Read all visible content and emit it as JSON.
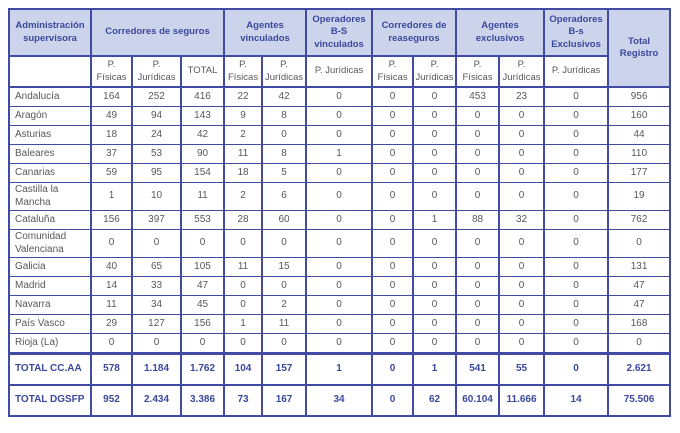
{
  "table": {
    "header": {
      "admin": "Administración supervisora",
      "groups": [
        "Corredores de seguros",
        "Agentes vinculados",
        "Operadores B-S vinculados",
        "Corredores de reaseguros",
        "Agentes exclusivos",
        "Operadores B-s Exclusivos"
      ],
      "total": "Total Registro"
    },
    "subheaders": [
      "P. Físicas",
      "P. Jurídicas",
      "TOTAL",
      "P. Físicas",
      "P. Jurídicas",
      "P. Jurídicas",
      "P. Físicas",
      "P. Jurídicas",
      "P. Físicas",
      "P. Jurídicas",
      "P. Jurídicas"
    ],
    "rows": [
      {
        "name": "Andalucía",
        "values": [
          "164",
          "252",
          "416",
          "22",
          "42",
          "0",
          "0",
          "0",
          "453",
          "23",
          "0",
          "956"
        ]
      },
      {
        "name": "Aragón",
        "values": [
          "49",
          "94",
          "143",
          "9",
          "8",
          "0",
          "0",
          "0",
          "0",
          "0",
          "0",
          "160"
        ]
      },
      {
        "name": "Asturias",
        "values": [
          "18",
          "24",
          "42",
          "2",
          "0",
          "0",
          "0",
          "0",
          "0",
          "0",
          "0",
          "44"
        ]
      },
      {
        "name": "Baleares",
        "values": [
          "37",
          "53",
          "90",
          "11",
          "8",
          "1",
          "0",
          "0",
          "0",
          "0",
          "0",
          "110"
        ]
      },
      {
        "name": "Canarias",
        "values": [
          "59",
          "95",
          "154",
          "18",
          "5",
          "0",
          "0",
          "0",
          "0",
          "0",
          "0",
          "177"
        ]
      },
      {
        "name": "Castilla la Mancha",
        "values": [
          "1",
          "10",
          "11",
          "2",
          "6",
          "0",
          "0",
          "0",
          "0",
          "0",
          "0",
          "19"
        ]
      },
      {
        "name": "Cataluña",
        "values": [
          "156",
          "397",
          "553",
          "28",
          "60",
          "0",
          "0",
          "1",
          "88",
          "32",
          "0",
          "762"
        ]
      },
      {
        "name": "Comunidad Valenciana",
        "values": [
          "0",
          "0",
          "0",
          "0",
          "0",
          "0",
          "0",
          "0",
          "0",
          "0",
          "0",
          "0"
        ]
      },
      {
        "name": "Galicia",
        "values": [
          "40",
          "65",
          "105",
          "11",
          "15",
          "0",
          "0",
          "0",
          "0",
          "0",
          "0",
          "131"
        ]
      },
      {
        "name": "Madrid",
        "values": [
          "14",
          "33",
          "47",
          "0",
          "0",
          "0",
          "0",
          "0",
          "0",
          "0",
          "0",
          "47"
        ]
      },
      {
        "name": "Navarra",
        "values": [
          "11",
          "34",
          "45",
          "0",
          "2",
          "0",
          "0",
          "0",
          "0",
          "0",
          "0",
          "47"
        ]
      },
      {
        "name": "País Vasco",
        "values": [
          "29",
          "127",
          "156",
          "1",
          "11",
          "0",
          "0",
          "0",
          "0",
          "0",
          "0",
          "168"
        ]
      },
      {
        "name": "Rioja (La)",
        "values": [
          "0",
          "0",
          "0",
          "0",
          "0",
          "0",
          "0",
          "0",
          "0",
          "0",
          "0",
          "0"
        ]
      }
    ],
    "total_rows": [
      {
        "name": "TOTAL CC.AA",
        "values": [
          "578",
          "1.184",
          "1.762",
          "104",
          "157",
          "1",
          "0",
          "1",
          "541",
          "55",
          "0",
          "2.621"
        ]
      },
      {
        "name": "TOTAL DGSFP",
        "values": [
          "952",
          "2.434",
          "3.386",
          "73",
          "167",
          "34",
          "0",
          "62",
          "60.104",
          "11.666",
          "14",
          "75.506"
        ]
      }
    ],
    "colors": {
      "border": "#414ba4",
      "header_bg": "#ccd4ec",
      "header_text": "#3a489d",
      "body_text": "#57585c"
    }
  }
}
